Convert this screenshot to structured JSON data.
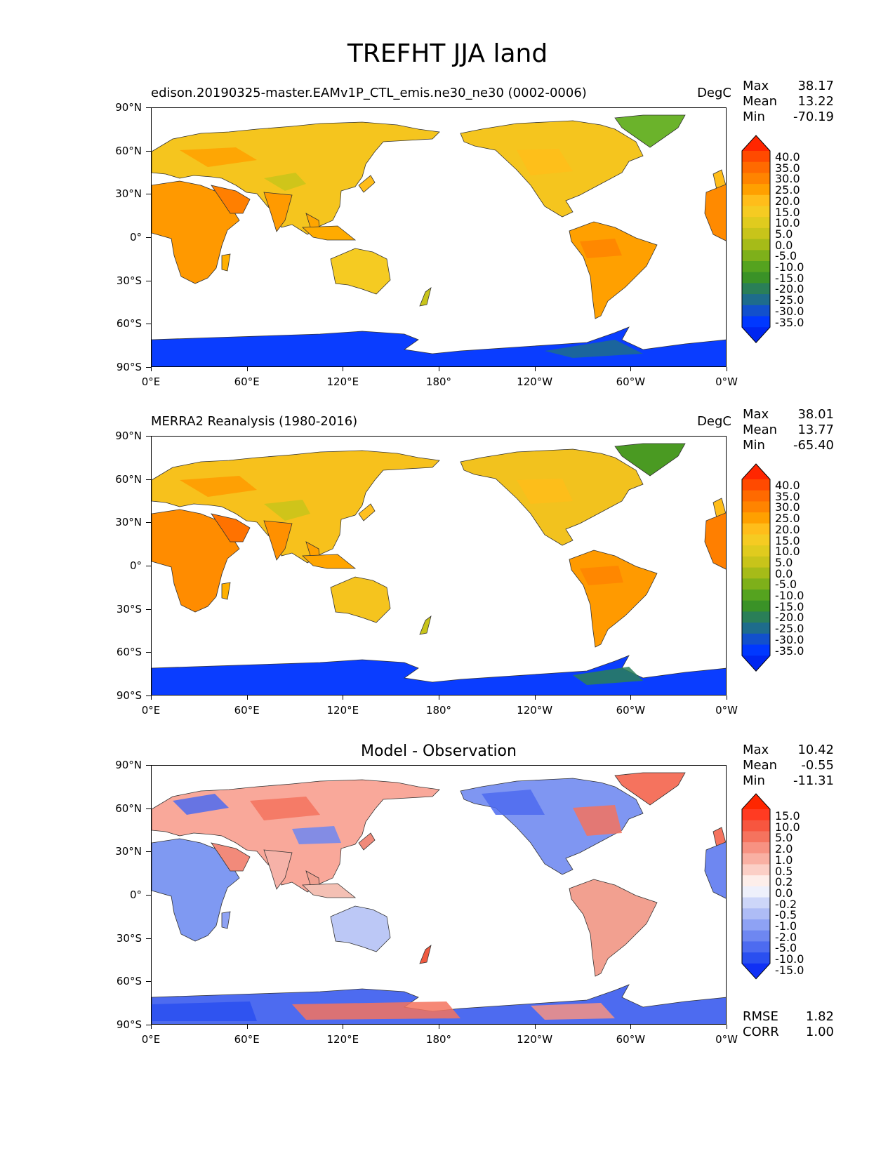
{
  "figure": {
    "title": "TREFHT JJA land"
  },
  "axes": {
    "lat_labels": [
      "90°N",
      "60°N",
      "30°N",
      "0°",
      "30°S",
      "60°S",
      "90°S"
    ],
    "lon_labels": [
      "0°E",
      "60°E",
      "120°E",
      "180°",
      "120°W",
      "60°W",
      "0°W"
    ]
  },
  "panels": [
    {
      "id": "model",
      "title_left": "edison.20190325-master.EAMv1P_CTL_emis.ne30_ne30 (0002-0006)",
      "title_right": "DegC",
      "stats": [
        {
          "label": "Max",
          "value": "38.17"
        },
        {
          "label": "Mean",
          "value": "13.22"
        },
        {
          "label": "Min",
          "value": "-70.19"
        }
      ],
      "colorbar": {
        "labels": [
          "40.0",
          "35.0",
          "30.0",
          "25.0",
          "20.0",
          "15.0",
          "10.0",
          "5.0",
          "0.0",
          "-5.0",
          "-10.0",
          "-15.0",
          "-20.0",
          "-25.0",
          "-30.0",
          "-35.0"
        ],
        "colors": [
          "#ff2600",
          "#ff4a00",
          "#ff6a00",
          "#ff8400",
          "#ffa000",
          "#ffbd1a",
          "#f5cb22",
          "#e0cb1e",
          "#c8c41a",
          "#a6bb18",
          "#7eb01a",
          "#55a31f",
          "#3a9227",
          "#2a7f58",
          "#1e6c8c",
          "#1250cc",
          "#0038ff",
          "#0026f0"
        ]
      }
    },
    {
      "id": "obs",
      "title_left": "MERRA2 Reanalysis (1980-2016)",
      "title_right": "DegC",
      "stats": [
        {
          "label": "Max",
          "value": "38.01"
        },
        {
          "label": "Mean",
          "value": "13.77"
        },
        {
          "label": "Min",
          "value": "-65.40"
        }
      ],
      "colorbar": {
        "labels": [
          "40.0",
          "35.0",
          "30.0",
          "25.0",
          "20.0",
          "15.0",
          "10.0",
          "5.0",
          "0.0",
          "-5.0",
          "-10.0",
          "-15.0",
          "-20.0",
          "-25.0",
          "-30.0",
          "-35.0"
        ],
        "colors": [
          "#ff2600",
          "#ff4a00",
          "#ff6a00",
          "#ff8400",
          "#ffa000",
          "#ffbd1a",
          "#f5cb22",
          "#e0cb1e",
          "#c8c41a",
          "#a6bb18",
          "#7eb01a",
          "#55a31f",
          "#3a9227",
          "#2a7f58",
          "#1e6c8c",
          "#1250cc",
          "#0038ff",
          "#0026f0"
        ]
      }
    },
    {
      "id": "diff",
      "title_center": "Model - Observation",
      "stats": [
        {
          "label": "Max",
          "value": "10.42"
        },
        {
          "label": "Mean",
          "value": "-0.55"
        },
        {
          "label": "Min",
          "value": "-11.31"
        }
      ],
      "colorbar": {
        "labels": [
          "15.0",
          "10.0",
          "5.0",
          "2.0",
          "1.0",
          "0.5",
          "0.2",
          "0.0",
          "-0.2",
          "-0.5",
          "-1.0",
          "-2.0",
          "-5.0",
          "-10.0",
          "-15.0"
        ],
        "colors": [
          "#ff2600",
          "#ff3b22",
          "#f7563f",
          "#f5735e",
          "#f79282",
          "#f9b0a3",
          "#fbcfc6",
          "#fdeeea",
          "#eef0fb",
          "#cdd6f9",
          "#aebcf6",
          "#8ea2f4",
          "#6e87f1",
          "#4d6bf0",
          "#2a4ff0",
          "#1030f5"
        ]
      },
      "bottom_stats": [
        {
          "label": "RMSE",
          "value": "1.82"
        },
        {
          "label": "CORR",
          "value": "1.00"
        }
      ]
    }
  ]
}
